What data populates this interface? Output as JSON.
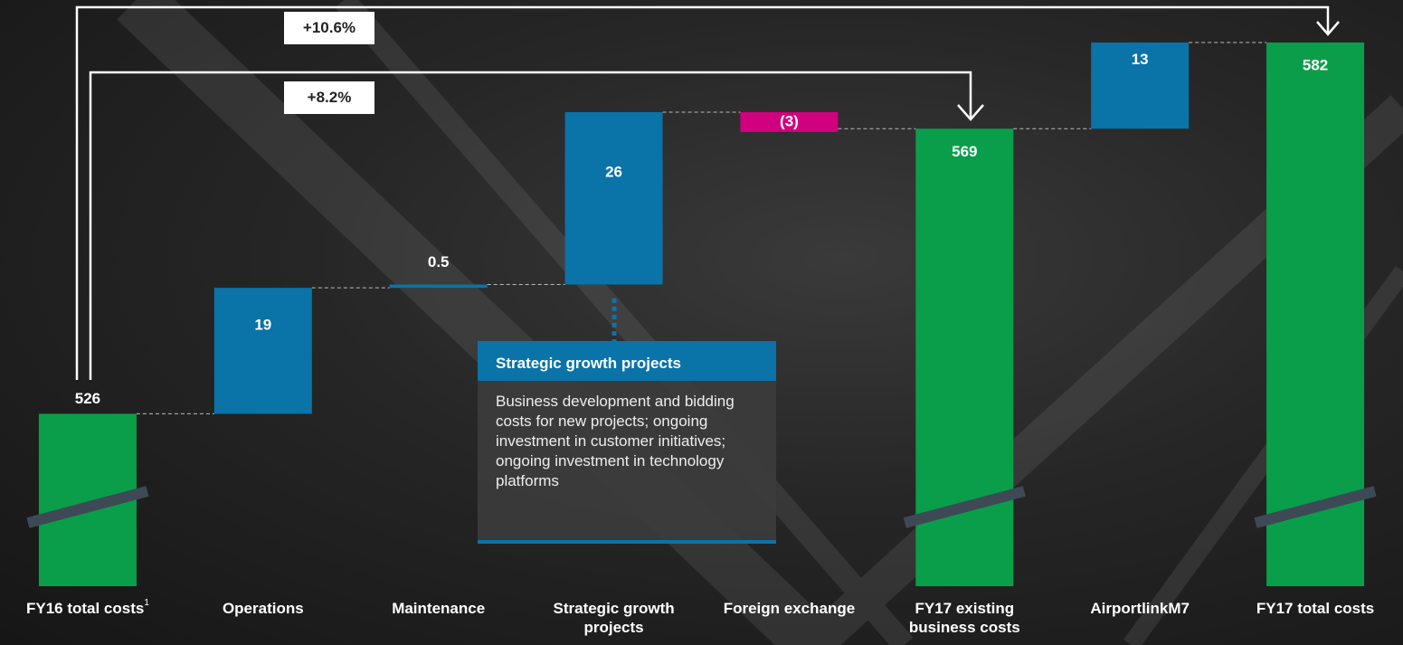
{
  "chart_data": {
    "type": "waterfall",
    "categories": [
      "FY16 total costs",
      "Operations",
      "Maintenance",
      "Strategic growth projects",
      "Foreign exchange",
      "FY17 existing business costs",
      "AirportlinkM7",
      "FY17 total costs"
    ],
    "category_notes": [
      "1",
      null,
      null,
      null,
      null,
      null,
      null,
      null
    ],
    "values": [
      526,
      19,
      0.5,
      26,
      -3,
      569,
      13,
      582
    ],
    "value_labels": [
      "526",
      "19",
      "0.5",
      "26",
      "(3)",
      "569",
      "13",
      "582"
    ],
    "measure": [
      "absolute",
      "relative",
      "relative",
      "relative",
      "relative",
      "absolute",
      "relative",
      "absolute"
    ],
    "colors": {
      "absolute": "#0a9e4a",
      "increase": "#0a73a8",
      "decrease": "#d1007f"
    },
    "ylim": [
      500,
      585
    ],
    "annotations": [
      "+10.6%",
      "+8.2%"
    ],
    "callout": {
      "title": "Strategic growth projects",
      "text": "Business development and bidding costs for new projects; ongoing investment in customer initiatives; ongoing investment in technology platforms"
    }
  }
}
